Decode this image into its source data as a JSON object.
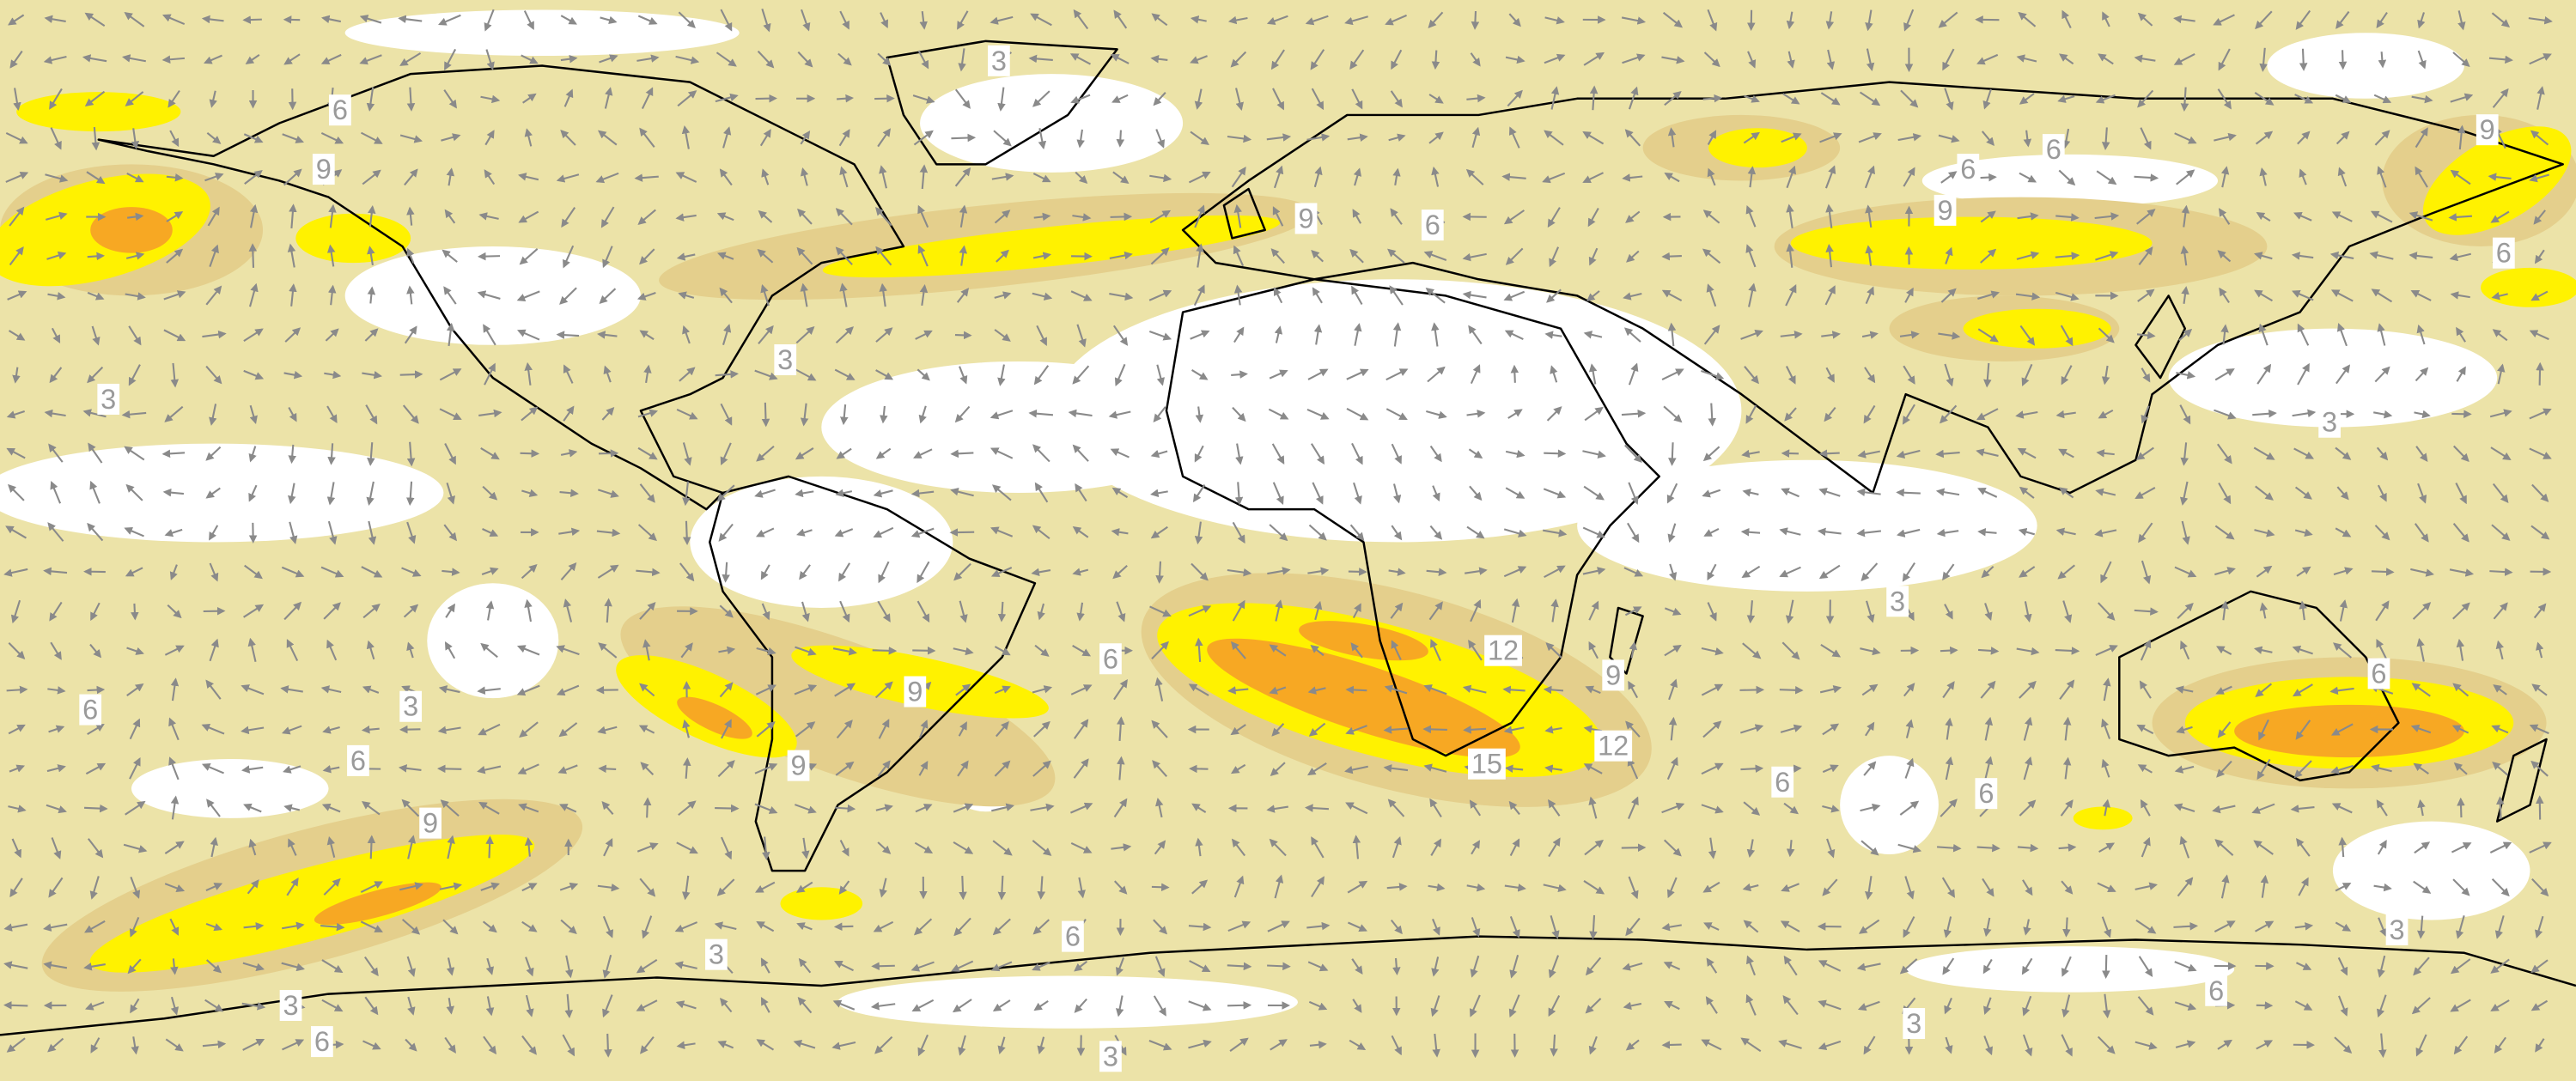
{
  "contour_labels": [
    3,
    6,
    9,
    3,
    3,
    9,
    6,
    6,
    6,
    9,
    9,
    6,
    3,
    3,
    6,
    12,
    9,
    12,
    15,
    9,
    9,
    6,
    3,
    6,
    9,
    6,
    6,
    6,
    6,
    3,
    3,
    6,
    3,
    3,
    6,
    3
  ]
}
